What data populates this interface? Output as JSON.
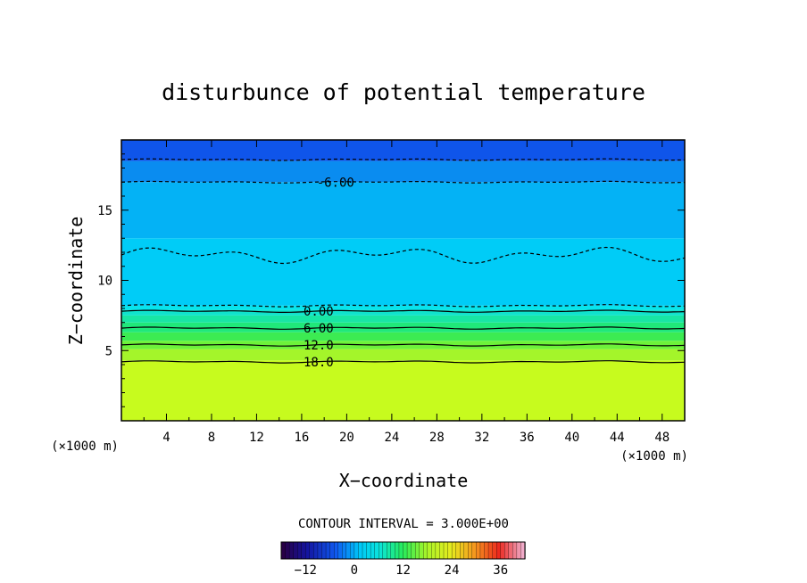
{
  "chart_data": {
    "type": "heatmap",
    "title": "disturbunce of potential temperature",
    "xlabel": "X−coordinate",
    "ylabel": "Z−coordinate",
    "x_unit": "(×1000 m)",
    "y_unit": "(×1000 m)",
    "xlim": [
      0,
      50
    ],
    "ylim": [
      0,
      20
    ],
    "x_ticks": [
      4,
      8,
      12,
      16,
      20,
      24,
      28,
      32,
      36,
      40,
      44,
      48
    ],
    "y_ticks": [
      5,
      10,
      15
    ],
    "contour_interval_text": "CONTOUR INTERVAL = 3.000E+00",
    "contour_interval": 3,
    "contour_labels": [
      {
        "text": "-6.00",
        "x": 19,
        "z": 17.0
      },
      {
        "text": "0.00",
        "x": 17.5,
        "z": 7.8
      },
      {
        "text": "6.00",
        "x": 17.5,
        "z": 6.6
      },
      {
        "text": "12.0",
        "x": 17.5,
        "z": 5.4
      },
      {
        "text": "18.0",
        "x": 17.5,
        "z": 4.2
      }
    ],
    "colorbar": {
      "min": -18,
      "max": 42,
      "tick_values": [
        -12,
        0,
        12,
        24,
        36
      ],
      "tick_labels": [
        "−12",
        "0",
        "12",
        "24",
        "36"
      ]
    },
    "fill_bands": [
      {
        "z_from": 0,
        "z_to": 4.3,
        "value": 21,
        "color": "#c7fb1e"
      },
      {
        "z_from": 4.3,
        "z_to": 5.1,
        "value": 18,
        "color": "#a4f52a"
      },
      {
        "z_from": 5.1,
        "z_to": 5.7,
        "value": 15,
        "color": "#6df23a"
      },
      {
        "z_from": 5.7,
        "z_to": 6.3,
        "value": 12,
        "color": "#3ceb52"
      },
      {
        "z_from": 6.3,
        "z_to": 7.0,
        "value": 9,
        "color": "#20e87a"
      },
      {
        "z_from": 7.0,
        "z_to": 7.5,
        "value": 6,
        "color": "#18e6a4"
      },
      {
        "z_from": 7.5,
        "z_to": 7.9,
        "value": 3,
        "color": "#10e3cc"
      },
      {
        "z_from": 7.9,
        "z_to": 8.2,
        "value": 0,
        "color": "#07e4ec"
      },
      {
        "z_from": 8.2,
        "z_to": 13.0,
        "value": -1.5,
        "color": "#00ccf7"
      },
      {
        "z_from": 13.0,
        "z_to": 17.0,
        "value": -4.5,
        "color": "#04b2f5"
      },
      {
        "z_from": 17.0,
        "z_to": 18.5,
        "value": -7.5,
        "color": "#0a8cf0"
      },
      {
        "z_from": 18.5,
        "z_to": 20.0,
        "value": -10.5,
        "color": "#0f55ea"
      }
    ]
  }
}
